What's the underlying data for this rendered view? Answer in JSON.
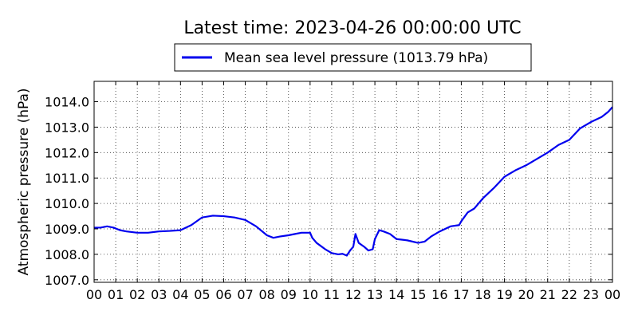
{
  "chart_data": {
    "type": "line",
    "title": "Latest time: 2023-04-26 00:00:00 UTC",
    "xlabel": "",
    "ylabel": "Atmospheric pressure (hPa)",
    "legend": {
      "placement": "top-center",
      "entries": [
        "Mean sea level pressure (1013.79 hPa)"
      ]
    },
    "grid": true,
    "xlim": [
      0,
      24
    ],
    "ylim": [
      1006.9,
      1014.8
    ],
    "x_tick_labels": [
      "00",
      "01",
      "02",
      "03",
      "04",
      "05",
      "06",
      "07",
      "08",
      "09",
      "10",
      "11",
      "12",
      "13",
      "14",
      "15",
      "16",
      "17",
      "18",
      "19",
      "20",
      "21",
      "22",
      "23",
      "00"
    ],
    "y_ticks": [
      1007.0,
      1008.0,
      1009.0,
      1010.0,
      1011.0,
      1012.0,
      1013.0,
      1014.0
    ],
    "y_tick_labels": [
      "1007.0",
      "1008.0",
      "1009.0",
      "1010.0",
      "1011.0",
      "1012.0",
      "1013.0",
      "1014.0"
    ],
    "color": "#0000ee",
    "series": [
      {
        "name": "Mean sea level pressure (1013.79 hPa)",
        "x": [
          0,
          0.3,
          0.6,
          0.9,
          1.2,
          1.5,
          2.0,
          2.5,
          3.0,
          3.5,
          4.0,
          4.5,
          5.0,
          5.5,
          6.0,
          6.5,
          7.0,
          7.5,
          8.0,
          8.3,
          8.6,
          9.0,
          9.3,
          9.6,
          10.0,
          10.1,
          10.3,
          10.7,
          11.0,
          11.3,
          11.5,
          11.7,
          11.85,
          12.0,
          12.1,
          12.25,
          12.5,
          12.7,
          12.9,
          13.0,
          13.2,
          13.4,
          13.7,
          14.0,
          14.5,
          15.0,
          15.3,
          15.6,
          16.0,
          16.5,
          16.9,
          17.0,
          17.3,
          17.6,
          18.0,
          18.5,
          19.0,
          19.5,
          20.0,
          20.5,
          21.0,
          21.5,
          22.0,
          22.5,
          23.0,
          23.5,
          23.8,
          24.0
        ],
        "y": [
          1009.05,
          1009.05,
          1009.1,
          1009.05,
          1008.95,
          1008.9,
          1008.85,
          1008.85,
          1008.9,
          1008.92,
          1008.95,
          1009.15,
          1009.45,
          1009.52,
          1009.5,
          1009.45,
          1009.35,
          1009.1,
          1008.75,
          1008.65,
          1008.7,
          1008.75,
          1008.8,
          1008.85,
          1008.85,
          1008.65,
          1008.45,
          1008.2,
          1008.05,
          1008.0,
          1008.02,
          1007.95,
          1008.15,
          1008.3,
          1008.8,
          1008.45,
          1008.3,
          1008.15,
          1008.2,
          1008.6,
          1008.95,
          1008.9,
          1008.8,
          1008.6,
          1008.55,
          1008.45,
          1008.5,
          1008.7,
          1008.9,
          1009.1,
          1009.15,
          1009.3,
          1009.65,
          1009.8,
          1010.2,
          1010.6,
          1011.05,
          1011.3,
          1011.5,
          1011.75,
          1012.0,
          1012.3,
          1012.5,
          1012.95,
          1013.2,
          1013.4,
          1013.6,
          1013.79
        ]
      }
    ]
  }
}
